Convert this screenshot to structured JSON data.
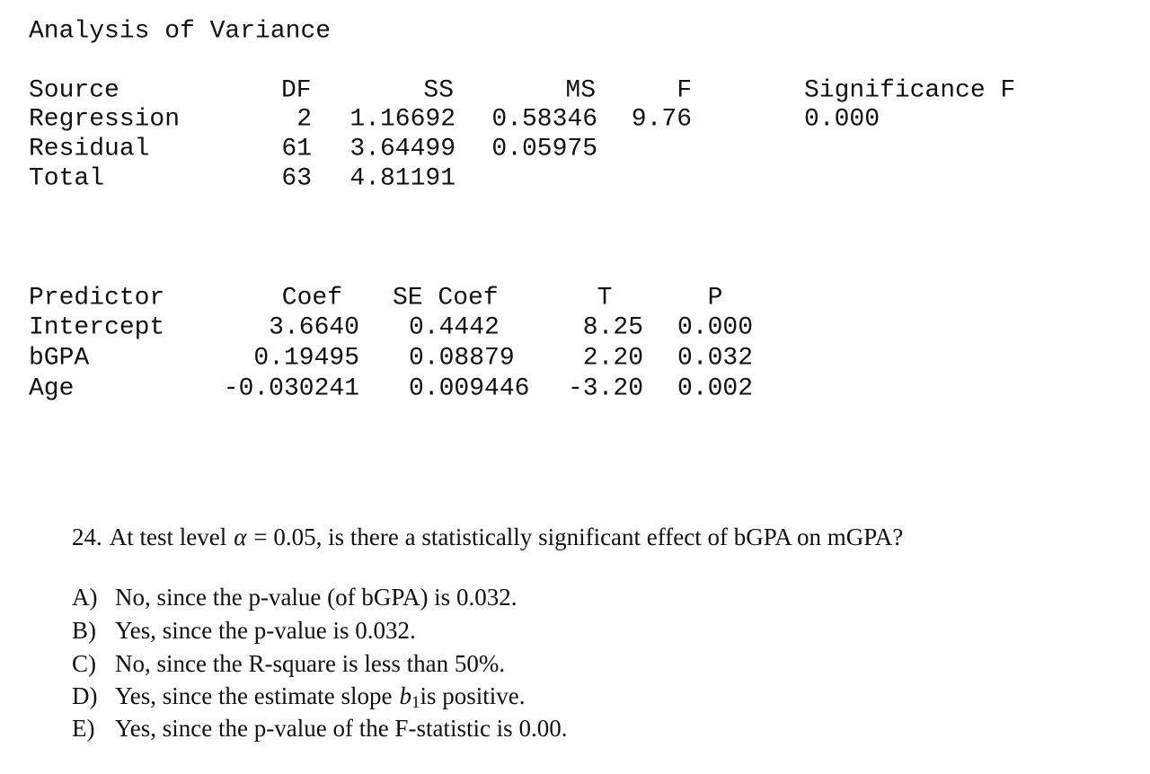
{
  "title": "Analysis of Variance",
  "anova": {
    "header": [
      "Source",
      "DF",
      "SS",
      "MS",
      "F",
      "Significance F"
    ],
    "rows": [
      [
        "Regression",
        "2",
        "1.16692",
        "0.58346",
        "9.76",
        "0.000"
      ],
      [
        "Residual",
        "61",
        "3.64499",
        "0.05975"
      ],
      [
        "Total",
        "63",
        "4.81191"
      ]
    ]
  },
  "coefficients": {
    "header": [
      "Predictor",
      "Coef",
      "SE Coef",
      "T",
      "P"
    ],
    "rows": [
      [
        "Intercept",
        "3.6640",
        "0.4442",
        "8.25",
        "0.000"
      ],
      [
        "bGPA",
        "0.19495",
        "0.08879",
        "2.20",
        "0.032"
      ],
      [
        "Age",
        "-0.030241",
        "0.009446",
        "-3.20",
        "0.002"
      ]
    ]
  },
  "question": {
    "number": "24.",
    "text": "At test level",
    "symbol": "α",
    "rest": "= 0.05, is there a statistically significant effect of bGPA on mGPA?",
    "options": [
      {
        "label": "A)",
        "text": "No, since the p-value (of bGPA) is 0.032."
      },
      {
        "label": "B)",
        "text": "Yes, since the p-value is 0.032."
      },
      {
        "label": "C)",
        "text": "No, since the R-square is less than 50%."
      },
      {
        "label": "D)",
        "text": "Yes, since the estimate slope",
        "var": "b",
        "sub": "1",
        "after": "is positive."
      },
      {
        "label": "E)",
        "text": "Yes, since the p-value of the F-statistic is 0.00."
      }
    ]
  }
}
